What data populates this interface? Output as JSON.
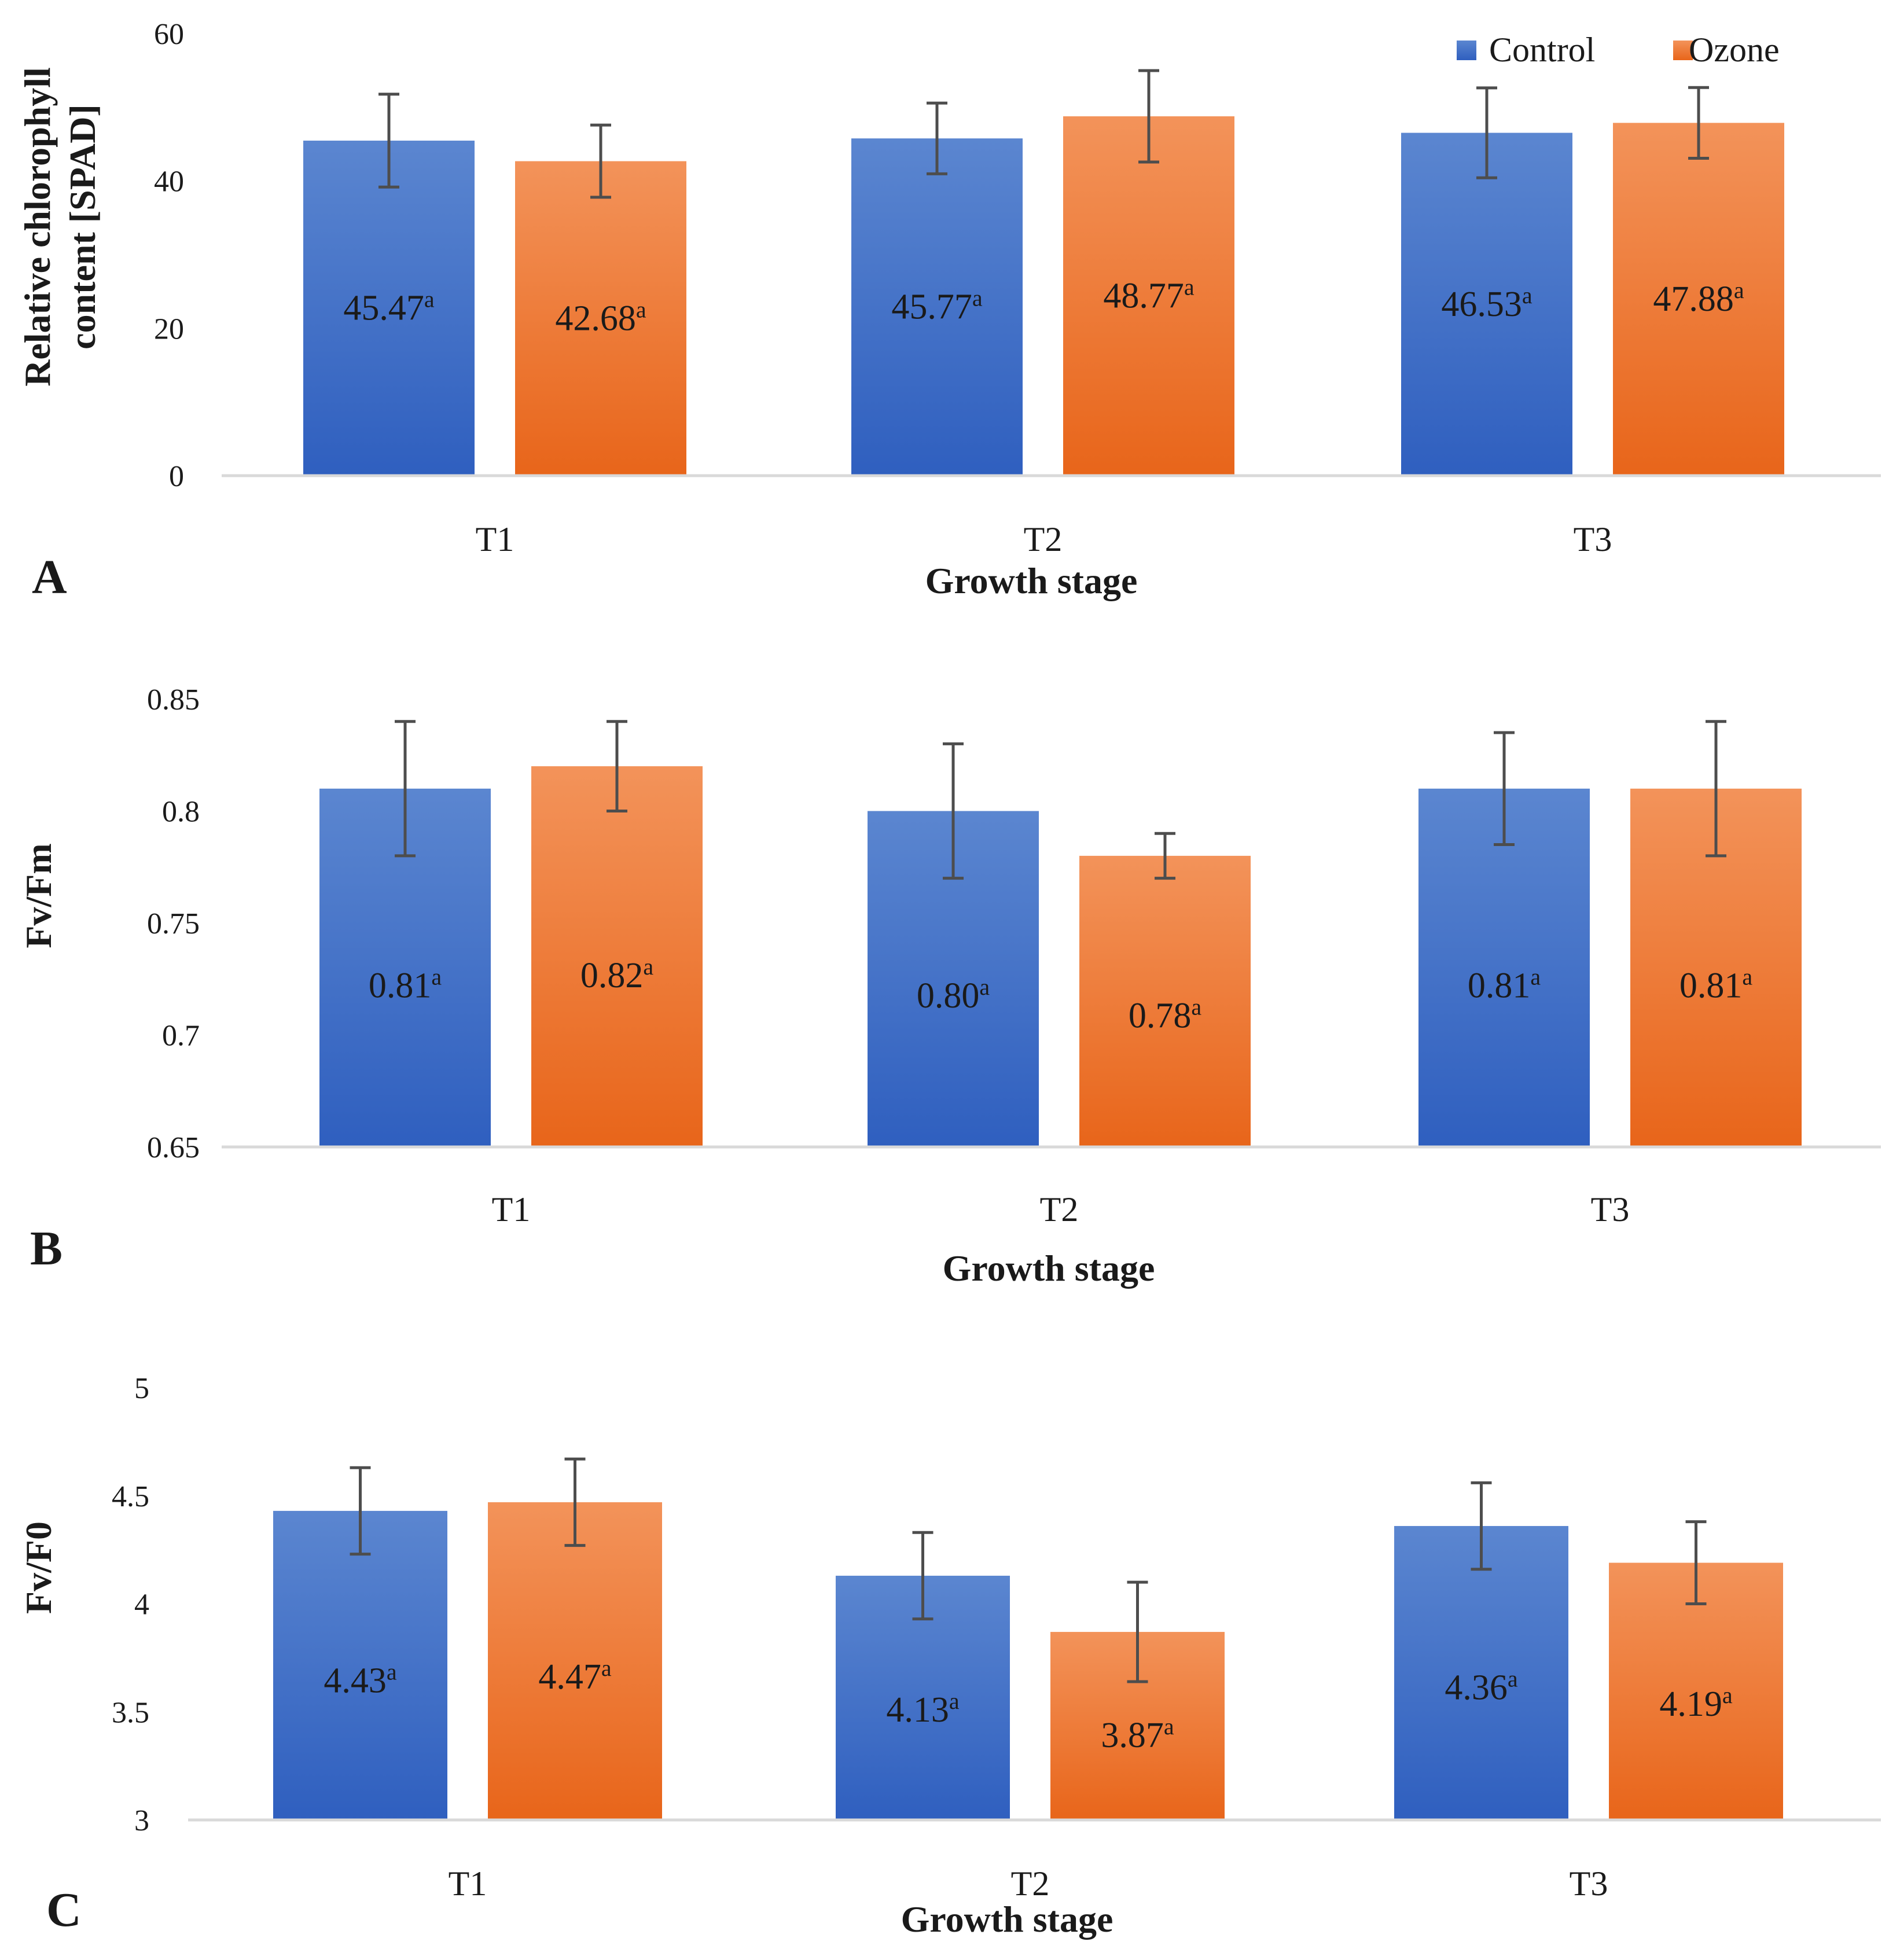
{
  "colors": {
    "control_light": "#5b86d0",
    "control_dark": "#2f5fbf",
    "ozone_light": "#f3935a",
    "ozone_dark": "#e8651a",
    "axis": "#d9d9d9",
    "errorbar": "#4d4d4d"
  },
  "legend": {
    "items": [
      {
        "label": "Control",
        "color_key": "control"
      },
      {
        "label": "Ozone",
        "color_key": "ozone"
      }
    ]
  },
  "chart_data": [
    {
      "type": "bar",
      "panel": "A",
      "ylabel_lines": [
        "Relative chlorophyll",
        "content [SPAD]"
      ],
      "xlabel": "Growth stage",
      "categories": [
        "T1",
        "T2",
        "T3"
      ],
      "ylim": [
        0,
        60
      ],
      "yticks": [
        0,
        20,
        40,
        60
      ],
      "ytick_labels": [
        "0",
        "20",
        "40",
        "60"
      ],
      "series": [
        {
          "name": "Control",
          "values": [
            45.47,
            45.77,
            46.53
          ],
          "errors": [
            6.3,
            4.8,
            6.1
          ],
          "labels": [
            "45.47",
            "45.77",
            "46.53"
          ],
          "sig": [
            "a",
            "a",
            "a"
          ]
        },
        {
          "name": "Ozone",
          "values": [
            42.68,
            48.77,
            47.88
          ],
          "errors": [
            4.9,
            6.2,
            4.8
          ],
          "labels": [
            "42.68",
            "48.77",
            "47.88"
          ],
          "sig": [
            "a",
            "a",
            "a"
          ]
        }
      ]
    },
    {
      "type": "bar",
      "panel": "B",
      "ylabel_lines": [
        "Fv/Fm"
      ],
      "xlabel": "Growth stage",
      "categories": [
        "T1",
        "T2",
        "T3"
      ],
      "ylim": [
        0.65,
        0.85
      ],
      "yticks": [
        0.65,
        0.7,
        0.75,
        0.8,
        0.85
      ],
      "ytick_labels": [
        "0.65",
        "0.7",
        "0.75",
        "0.8",
        "0.85"
      ],
      "series": [
        {
          "name": "Control",
          "values": [
            0.81,
            0.8,
            0.81
          ],
          "errors": [
            0.03,
            0.03,
            0.025
          ],
          "labels": [
            "0.81",
            "0.80",
            "0.81"
          ],
          "sig": [
            "a",
            "a",
            "a"
          ]
        },
        {
          "name": "Ozone",
          "values": [
            0.82,
            0.78,
            0.81
          ],
          "errors": [
            0.02,
            0.01,
            0.03
          ],
          "labels": [
            "0.82",
            "0.78",
            "0.81"
          ],
          "sig": [
            "a",
            "a",
            "a"
          ]
        }
      ]
    },
    {
      "type": "bar",
      "panel": "C",
      "ylabel_lines": [
        "Fv/F0"
      ],
      "xlabel": "Growth stage",
      "categories": [
        "T1",
        "T2",
        "T3"
      ],
      "ylim": [
        3,
        5
      ],
      "yticks": [
        3,
        3.5,
        4,
        4.5,
        5
      ],
      "ytick_labels": [
        "3",
        "3.5",
        "4",
        "4.5",
        "5"
      ],
      "series": [
        {
          "name": "Control",
          "values": [
            4.43,
            4.13,
            4.36
          ],
          "errors": [
            0.2,
            0.2,
            0.2
          ],
          "labels": [
            "4.43",
            "4.13",
            "4.36"
          ],
          "sig": [
            "a",
            "a",
            "a"
          ]
        },
        {
          "name": "Ozone",
          "values": [
            4.47,
            3.87,
            4.19
          ],
          "errors": [
            0.2,
            0.23,
            0.19
          ],
          "labels": [
            "4.47",
            "3.87",
            "4.19"
          ],
          "sig": [
            "a",
            "a",
            "a"
          ]
        }
      ]
    }
  ]
}
